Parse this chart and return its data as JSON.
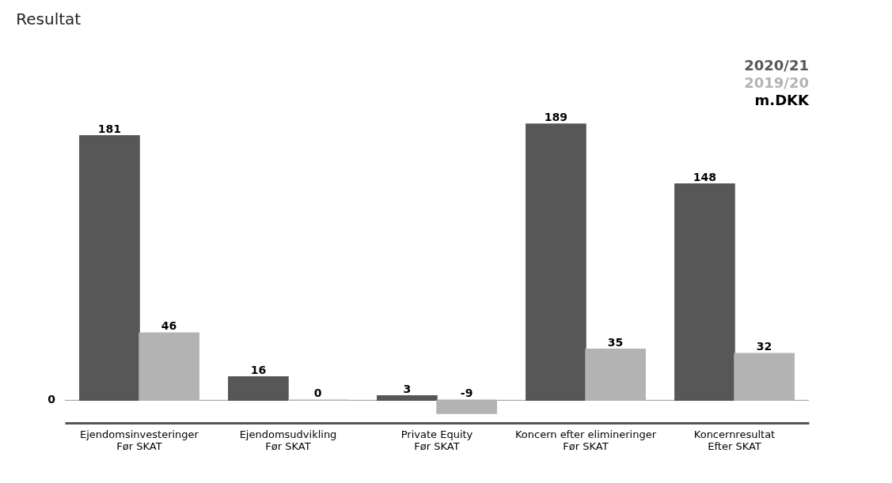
{
  "chart_data": {
    "type": "bar",
    "title": "Resultat",
    "categories": [
      "Ejendomsinvesteringer\nFør SKAT",
      "Ejendomsudvikling\nFør SKAT",
      "Private Equity\nFør SKAT",
      "Koncern efter elimineringer\nFør SKAT",
      "Koncernresultat\nEfter SKAT"
    ],
    "series": [
      {
        "name": "2020/21",
        "color": "#575757",
        "values": [
          181,
          16,
          3,
          189,
          148
        ]
      },
      {
        "name": "2019/20",
        "color": "#b3b3b3",
        "values": [
          46,
          0,
          -9,
          35,
          32
        ]
      }
    ],
    "legend": "top right",
    "data_labels": true,
    "annotations": [
      "m.DKK",
      "0"
    ]
  }
}
